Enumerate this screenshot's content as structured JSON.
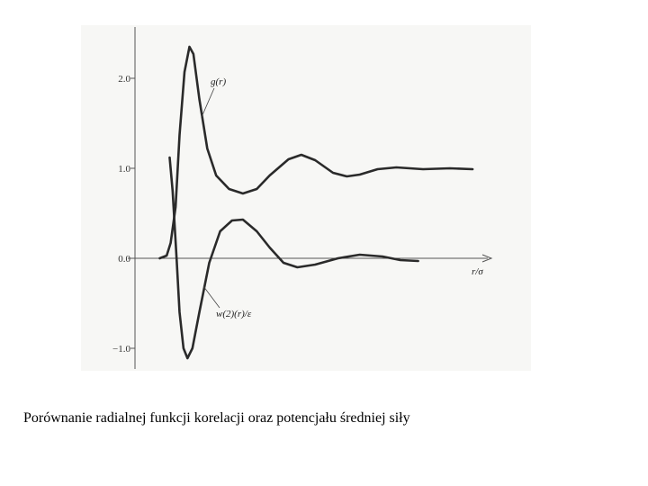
{
  "chart_data": {
    "type": "line",
    "xlabel": "r/σ",
    "caption": "Porównanie radialnej funkcji korelacji oraz potencjału średniej siły",
    "xlim": [
      0.55,
      4.15
    ],
    "ylim": [
      -1.23,
      2.57
    ],
    "yticks": [
      {
        "value": -1,
        "label": "−1.0"
      },
      {
        "value": 0,
        "label": "0.0"
      },
      {
        "value": 1,
        "label": "1.0"
      },
      {
        "value": 2,
        "label": "2.0"
      }
    ],
    "series": [
      {
        "name": "g(r)",
        "color": "#2a2a2a",
        "x": [
          0.8,
          0.87,
          0.91,
          0.96,
          1.0,
          1.05,
          1.1,
          1.14,
          1.2,
          1.28,
          1.37,
          1.5,
          1.64,
          1.78,
          1.91,
          2.1,
          2.23,
          2.37,
          2.55,
          2.69,
          2.82,
          3.0,
          3.19,
          3.46,
          3.73,
          3.96
        ],
        "values": [
          0,
          0.03,
          0.17,
          0.57,
          1.37,
          2.07,
          2.35,
          2.27,
          1.77,
          1.22,
          0.92,
          0.77,
          0.72,
          0.77,
          0.92,
          1.1,
          1.15,
          1.09,
          0.95,
          0.91,
          0.93,
          0.99,
          1.01,
          0.99,
          1.0,
          0.99
        ]
      },
      {
        "name": "w(2)(r)/ε",
        "color": "#2a2a2a",
        "x": [
          0.9,
          0.93,
          0.97,
          1.0,
          1.04,
          1.08,
          1.13,
          1.2,
          1.3,
          1.41,
          1.53,
          1.64,
          1.78,
          1.91,
          2.05,
          2.19,
          2.37,
          2.6,
          2.82,
          3.05,
          3.23,
          3.41
        ],
        "values": [
          1.12,
          0.75,
          0,
          -0.6,
          -1.0,
          -1.11,
          -1.0,
          -0.6,
          -0.05,
          0.3,
          0.42,
          0.43,
          0.3,
          0.12,
          -0.05,
          -0.1,
          -0.07,
          0,
          0.04,
          0.02,
          -0.02,
          -0.03
        ]
      }
    ]
  }
}
